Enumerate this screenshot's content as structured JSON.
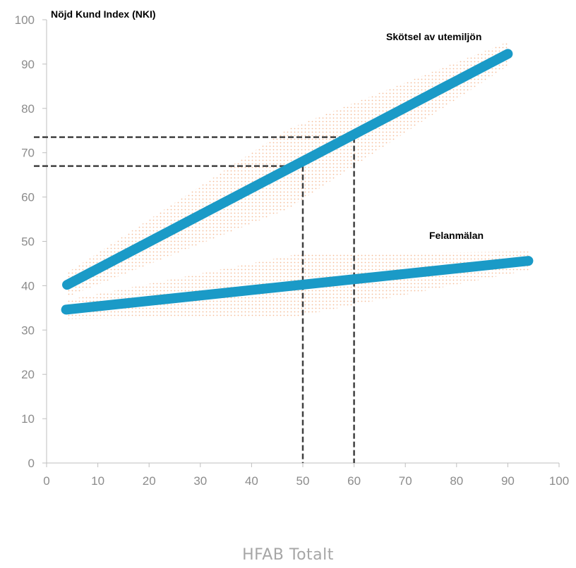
{
  "chart_data": {
    "type": "line",
    "ylabel": "Nöjd Kund Index (NKI)",
    "footer_label": "HFAB Totalt",
    "xlim": [
      0,
      100
    ],
    "ylim": [
      0,
      100
    ],
    "x_ticks": [
      "0",
      "10",
      "20",
      "30",
      "40",
      "50",
      "60",
      "70",
      "80",
      "90",
      "100"
    ],
    "y_ticks": [
      "0",
      "10",
      "20",
      "30",
      "40",
      "50",
      "60",
      "70",
      "80",
      "90",
      "100"
    ],
    "grid": false,
    "line_color": "#1a9ac7",
    "band_color": "#f0a878",
    "guide_color": "#404040",
    "series": [
      {
        "name": "Skötsel av utemiljön",
        "x": [
          4,
          90
        ],
        "y": [
          40.2,
          92.3
        ]
      },
      {
        "name": "Felanmälan",
        "x": [
          3.8,
          94
        ],
        "y": [
          34.6,
          45.6
        ]
      }
    ],
    "reference_lines": [
      {
        "x": 50,
        "y": 67
      },
      {
        "x": 60,
        "y": 73.5
      }
    ]
  }
}
